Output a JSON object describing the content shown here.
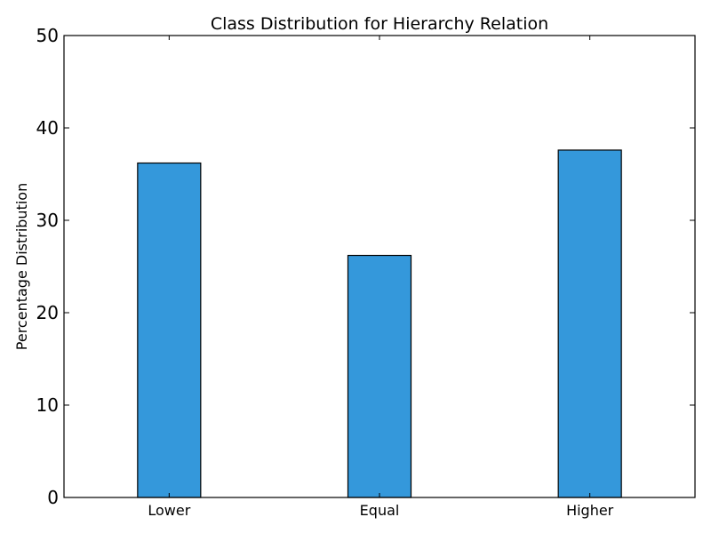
{
  "chart_data": {
    "type": "bar",
    "title": "Class Distribution for Hierarchy Relation",
    "xlabel": "",
    "ylabel": "Percentage Distribution",
    "categories": [
      "Lower",
      "Equal",
      "Higher"
    ],
    "values": [
      36.2,
      26.2,
      37.6
    ],
    "ylim": [
      0,
      50
    ],
    "yticks": [
      0,
      10,
      20,
      30,
      40,
      50
    ],
    "grid": false,
    "bar_color": "#3498db",
    "edge_color": "#000000"
  }
}
